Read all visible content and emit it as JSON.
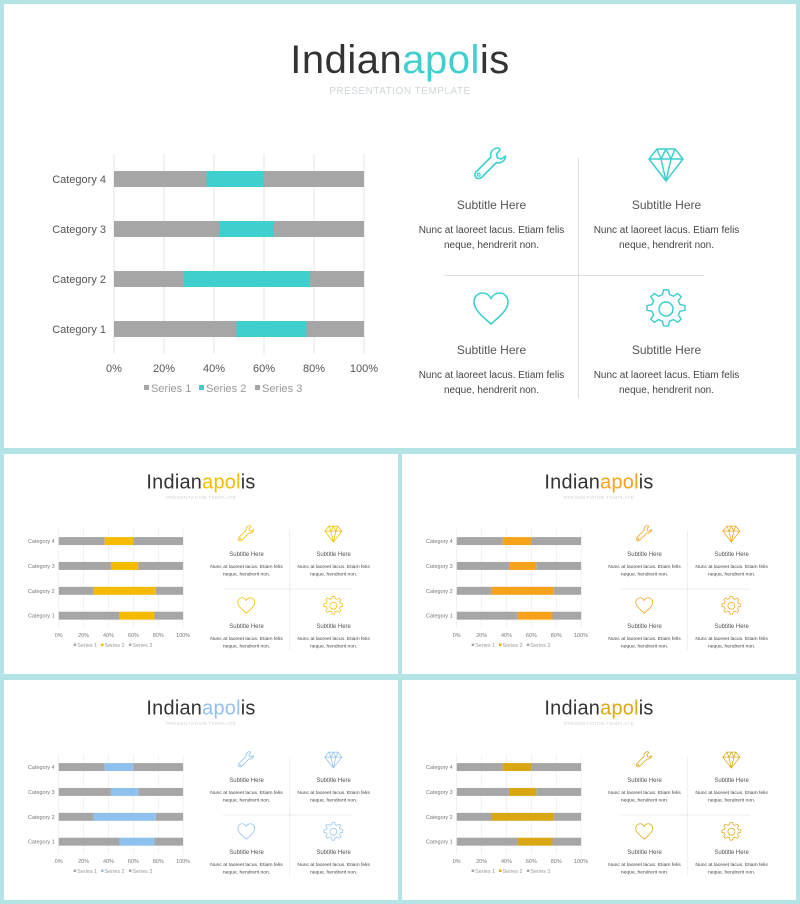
{
  "slides": [
    {
      "id": "slide-main",
      "title_part1": "Indian",
      "title_accent": "apol",
      "title_part2": "is",
      "subtitle": "PRESENTATION TEMPLATE",
      "accent": "#3fcfcf"
    },
    {
      "id": "slide-yellow",
      "title_part1": "Indian",
      "title_accent": "apol",
      "title_part2": "is",
      "subtitle": "PRESENTATION TEMPLATE",
      "accent": "#f5bb00"
    },
    {
      "id": "slide-orange",
      "title_part1": "Indian",
      "title_accent": "apol",
      "title_part2": "is",
      "subtitle": "PRESENTATION TEMPLATE",
      "accent": "#f7a21b"
    },
    {
      "id": "slide-blue",
      "title_part1": "Indian",
      "title_accent": "apol",
      "title_part2": "is",
      "subtitle": "PRESENTATION TEMPLATE",
      "accent": "#8fc1ee"
    },
    {
      "id": "slide-gold",
      "title_part1": "Indian",
      "title_accent": "apol",
      "title_part2": "is",
      "subtitle": "PRESENTATION TEMPLATE",
      "accent": "#d8a713"
    }
  ],
  "chart_data": {
    "type": "bar",
    "orientation": "horizontal",
    "stacked": "100%",
    "categories": [
      "Category 1",
      "Category 2",
      "Category 3",
      "Category 4"
    ],
    "series": [
      {
        "name": "Series 1",
        "values": [
          49,
          28,
          42,
          37
        ],
        "color": "#a6a6a6"
      },
      {
        "name": "Series 2",
        "values": [
          28,
          50,
          22,
          23
        ],
        "color": "accent"
      },
      {
        "name": "Series 3",
        "values": [
          23,
          22,
          36,
          40
        ],
        "color": "#a6a6a6"
      }
    ],
    "x_ticks": [
      "0%",
      "20%",
      "40%",
      "60%",
      "80%",
      "100%"
    ],
    "xlim": [
      0,
      100
    ],
    "legend": "bottom",
    "grid": true
  },
  "tiles": [
    {
      "icon": "wrench-icon",
      "title": "Subtitle  Here",
      "text": "Nunc at laoreet lacus. Etiam felis neque, hendrerit non."
    },
    {
      "icon": "diamond-icon",
      "title": "Subtitle  Here",
      "text": "Nunc at laoreet lacus. Etiam felis neque, hendrerit non."
    },
    {
      "icon": "heart-icon",
      "title": "Subtitle  Here",
      "text": "Nunc at laoreet lacus. Etiam felis neque, hendrerit non."
    },
    {
      "icon": "gear-icon",
      "title": "Subtitle  Here",
      "text": "Nunc at laoreet lacus. Etiam felis neque, hendrerit non."
    }
  ]
}
